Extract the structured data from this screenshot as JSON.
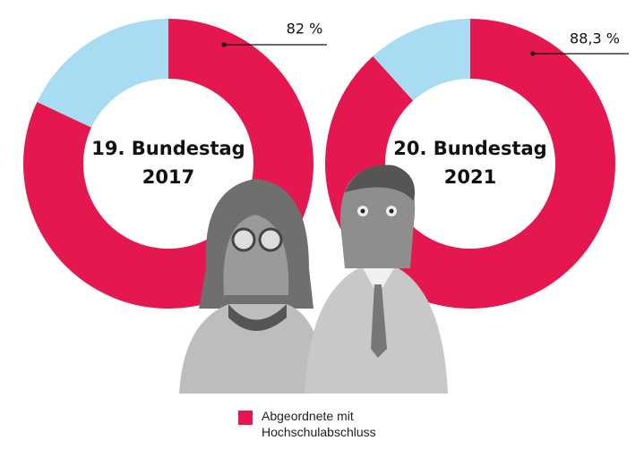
{
  "chart_data": [
    {
      "type": "donut",
      "title": "19. Bundestag",
      "subtitle": "2017",
      "values": [
        82,
        18
      ],
      "value_labels": [
        "82 %",
        null
      ],
      "colors": [
        "#e5174f",
        "#a8dcf3"
      ]
    },
    {
      "type": "donut",
      "title": "20. Bundestag",
      "subtitle": "2021",
      "values": [
        88.3,
        11.7
      ],
      "value_labels": [
        "88,3 %",
        null
      ],
      "colors": [
        "#e5174f",
        "#a8dcf3"
      ]
    }
  ],
  "legend": {
    "name": "Abgeordnete mit Hochschulabschluss",
    "color": "#e5174f"
  }
}
